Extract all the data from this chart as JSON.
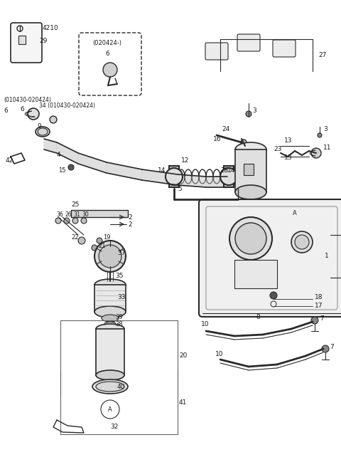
{
  "bg_color": "#ffffff",
  "line_color": "#2a2a2a",
  "text_color": "#1a1a1a",
  "fig_width": 4.8,
  "fig_height": 6.56,
  "dpi": 100
}
